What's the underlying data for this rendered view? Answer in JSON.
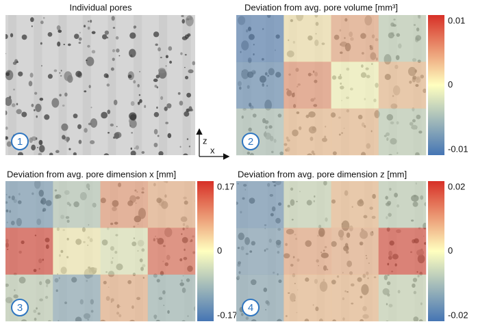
{
  "chart_data": [
    {
      "type": "image",
      "title": "Individual pores",
      "label": "1"
    },
    {
      "type": "heatmap",
      "title": "Deviation from avg. pore volume [mm³]",
      "label": "2",
      "values": [
        [
          -0.009,
          0.001,
          0.004,
          -0.003
        ],
        [
          -0.008,
          0.005,
          0.0,
          0.003
        ],
        [
          -0.004,
          0.003,
          0.003,
          -0.003
        ]
      ],
      "colorbar_lim": [
        -0.01,
        0.01
      ],
      "colorbar_ticks": [
        -0.01,
        0,
        0.01
      ],
      "colormap": [
        "#4575b4",
        "#ffffbf",
        "#d73027"
      ]
    },
    {
      "type": "heatmap",
      "title": "Deviation from avg. pore dimension x [mm]",
      "label": "3",
      "values": [
        [
          -0.12,
          -0.06,
          0.08,
          0.06
        ],
        [
          0.15,
          0.01,
          -0.02,
          0.12
        ],
        [
          -0.05,
          -0.1,
          0.06,
          -0.08
        ]
      ],
      "colorbar_lim": [
        -0.17,
        0.17
      ],
      "colorbar_ticks": [
        -0.17,
        0,
        0.17
      ],
      "colormap": [
        "#4575b4",
        "#ffffbf",
        "#d73027"
      ]
    },
    {
      "type": "heatmap",
      "title": "Deviation from avg. pore dimension z [mm]",
      "label": "4",
      "values": [
        [
          -0.015,
          -0.005,
          0.006,
          -0.006
        ],
        [
          -0.013,
          0.008,
          0.007,
          0.017
        ],
        [
          -0.012,
          0.006,
          0.006,
          -0.005
        ]
      ],
      "colorbar_lim": [
        -0.02,
        0.02
      ],
      "colorbar_ticks": [
        -0.02,
        0,
        0.02
      ],
      "colormap": [
        "#4575b4",
        "#ffffbf",
        "#d73027"
      ]
    }
  ],
  "axis_indicator": {
    "vertical": "z",
    "horizontal": "x"
  }
}
